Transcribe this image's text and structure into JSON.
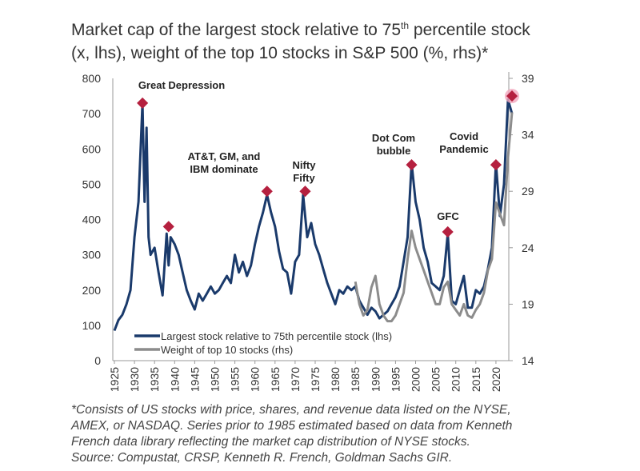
{
  "chart_data": {
    "type": "line",
    "title_line1_pre": "Market cap of the largest stock relative to 75",
    "title_sup": "th",
    "title_line1_post": " percentile stock",
    "title_line2": "(x, lhs), weight of the top 10 stocks in S&P 500 (%, rhs)*",
    "xlim": [
      1925,
      2024
    ],
    "ylim_left": [
      0,
      800
    ],
    "ylim_right": [
      14,
      39
    ],
    "x_ticks": [
      1925,
      1930,
      1935,
      1940,
      1945,
      1950,
      1955,
      1960,
      1965,
      1970,
      1975,
      1980,
      1985,
      1990,
      1995,
      2000,
      2005,
      2010,
      2015,
      2020
    ],
    "y_ticks_left": [
      0,
      100,
      200,
      300,
      400,
      500,
      600,
      700,
      800
    ],
    "y_ticks_right": [
      14,
      19,
      24,
      29,
      34,
      39
    ],
    "grid": false,
    "legend_placement": "bottom-left",
    "series": [
      {
        "name": "Largest stock relative to 75th percentile stock (lhs)",
        "axis": "left",
        "color": "#1a3a6b",
        "x": [
          1925,
          1926,
          1927,
          1928,
          1929,
          1930,
          1931,
          1932,
          1932.5,
          1933,
          1933.5,
          1934,
          1935,
          1936,
          1937,
          1938,
          1938.5,
          1939,
          1940,
          1941,
          1942,
          1943,
          1944,
          1945,
          1946,
          1947,
          1948,
          1949,
          1950,
          1951,
          1952,
          1953,
          1954,
          1955,
          1956,
          1957,
          1958,
          1959,
          1960,
          1961,
          1962,
          1963,
          1964,
          1965,
          1966,
          1967,
          1968,
          1969,
          1970,
          1971,
          1972,
          1973,
          1974,
          1975,
          1976,
          1977,
          1978,
          1979,
          1980,
          1981,
          1982,
          1983,
          1984,
          1985,
          1986,
          1987,
          1988,
          1989,
          1990,
          1991,
          1992,
          1993,
          1994,
          1995,
          1996,
          1997,
          1998,
          1999,
          2000,
          2001,
          2002,
          2003,
          2004,
          2005,
          2006,
          2007,
          2008,
          2009,
          2010,
          2011,
          2012,
          2013,
          2014,
          2015,
          2016,
          2017,
          2018,
          2019,
          2020,
          2021,
          2022,
          2023,
          2024
        ],
        "y": [
          85,
          115,
          130,
          160,
          200,
          350,
          450,
          730,
          450,
          660,
          350,
          300,
          320,
          250,
          185,
          360,
          270,
          350,
          330,
          300,
          250,
          200,
          170,
          145,
          190,
          170,
          190,
          210,
          190,
          200,
          220,
          240,
          220,
          300,
          250,
          280,
          240,
          270,
          330,
          380,
          420,
          470,
          420,
          380,
          310,
          260,
          250,
          190,
          280,
          300,
          470,
          350,
          390,
          330,
          300,
          260,
          220,
          190,
          160,
          200,
          190,
          210,
          200,
          210,
          170,
          150,
          130,
          150,
          140,
          120,
          130,
          140,
          160,
          180,
          210,
          280,
          350,
          560,
          450,
          400,
          320,
          280,
          220,
          210,
          200,
          240,
          360,
          170,
          160,
          200,
          240,
          150,
          150,
          200,
          190,
          210,
          260,
          320,
          560,
          410,
          500,
          740,
          700
        ]
      },
      {
        "name": "Weight of top 10 stocks (rhs)",
        "axis": "right",
        "color": "#8c8c8c",
        "x": [
          1985,
          1986,
          1987,
          1988,
          1989,
          1990,
          1991,
          1992,
          1993,
          1994,
          1995,
          1996,
          1997,
          1998,
          1999,
          2000,
          2001,
          2002,
          2003,
          2004,
          2005,
          2006,
          2007,
          2008,
          2009,
          2010,
          2011,
          2012,
          2013,
          2014,
          2015,
          2016,
          2017,
          2018,
          2019,
          2020,
          2021,
          2022,
          2023,
          2024
        ],
        "y": [
          21,
          19,
          18,
          18.5,
          20.5,
          21.5,
          19,
          18,
          17.5,
          17.5,
          18,
          19,
          20,
          23,
          25.5,
          24,
          23,
          22,
          21,
          20,
          19,
          19,
          20.5,
          21,
          19,
          18.5,
          18,
          19,
          18,
          17.8,
          18.5,
          19,
          20,
          22,
          23,
          28,
          27,
          26,
          32,
          36
        ]
      }
    ],
    "annotations": [
      {
        "label": "Great Depression",
        "x": 1932,
        "y": 730
      },
      {
        "label": "",
        "x": 1938.5,
        "y": 380
      },
      {
        "label": "AT&T, GM, and IBM dominate",
        "x": 1963,
        "y": 480
      },
      {
        "label": "Nifty Fifty",
        "x": 1972.5,
        "y": 480
      },
      {
        "label": "Dot Com bubble",
        "x": 1999,
        "y": 555
      },
      {
        "label": "GFC",
        "x": 2008,
        "y": 365
      },
      {
        "label": "Covid Pandemic",
        "x": 2020,
        "y": 555
      },
      {
        "label": "",
        "x": 2024,
        "y": 750,
        "highlight": true
      }
    ],
    "marker_color": "#b5203f",
    "highlight_color": "#f2a6bd"
  },
  "footnote": [
    "*Consists of US stocks with price, shares, and revenue data listed on the NYSE,",
    "AMEX, or NASDAQ. Series prior to 1985 estimated based on data from Kenneth",
    "French data library reflecting the market cap distribution of NYSE stocks.",
    "Source: Compustat, CRSP, Kenneth R. French, Goldman Sachs GIR."
  ]
}
